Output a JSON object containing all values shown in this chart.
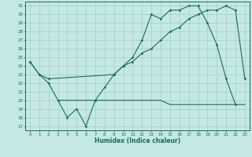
{
  "xlabel": "Humidex (Indice chaleur)",
  "bg_color": "#c5e8e2",
  "grid_color": "#9ecfc8",
  "line_color": "#1a6b60",
  "curve1_x": [
    0,
    1,
    2,
    3,
    4,
    5,
    6,
    7,
    8,
    9,
    10,
    11,
    12,
    13,
    14,
    15,
    16,
    17,
    18,
    19,
    20,
    21,
    22
  ],
  "curve1_y": [
    24.5,
    23.0,
    22.0,
    20.0,
    18.0,
    19.0,
    17.0,
    20.0,
    21.5,
    23.0,
    24.0,
    25.0,
    27.0,
    30.0,
    29.5,
    30.5,
    30.5,
    31.0,
    31.0,
    29.0,
    26.5,
    22.5,
    19.5
  ],
  "curve2_x": [
    0,
    1,
    2,
    9,
    10,
    11,
    12,
    13,
    14,
    15,
    16,
    17,
    18,
    19,
    20,
    21,
    22,
    23
  ],
  "curve2_y": [
    24.5,
    23.0,
    22.5,
    23.0,
    24.0,
    24.5,
    25.5,
    26.0,
    27.0,
    28.0,
    28.5,
    29.5,
    30.0,
    30.5,
    30.5,
    31.0,
    30.5,
    22.5
  ],
  "curve3_x": [
    3,
    10,
    11,
    12,
    13,
    14,
    15,
    16,
    17,
    18,
    19,
    20,
    21,
    22,
    23
  ],
  "curve3_y": [
    20.0,
    20.0,
    20.0,
    20.0,
    20.0,
    20.0,
    19.5,
    19.5,
    19.5,
    19.5,
    19.5,
    19.5,
    19.5,
    19.5,
    19.5
  ],
  "xlim": [
    -0.5,
    23.5
  ],
  "ylim": [
    16.5,
    31.5
  ],
  "xticks": [
    0,
    1,
    2,
    3,
    4,
    5,
    6,
    7,
    8,
    9,
    10,
    11,
    12,
    13,
    14,
    15,
    16,
    17,
    18,
    19,
    20,
    21,
    22,
    23
  ],
  "yticks": [
    17,
    18,
    19,
    20,
    21,
    22,
    23,
    24,
    25,
    26,
    27,
    28,
    29,
    30,
    31
  ]
}
